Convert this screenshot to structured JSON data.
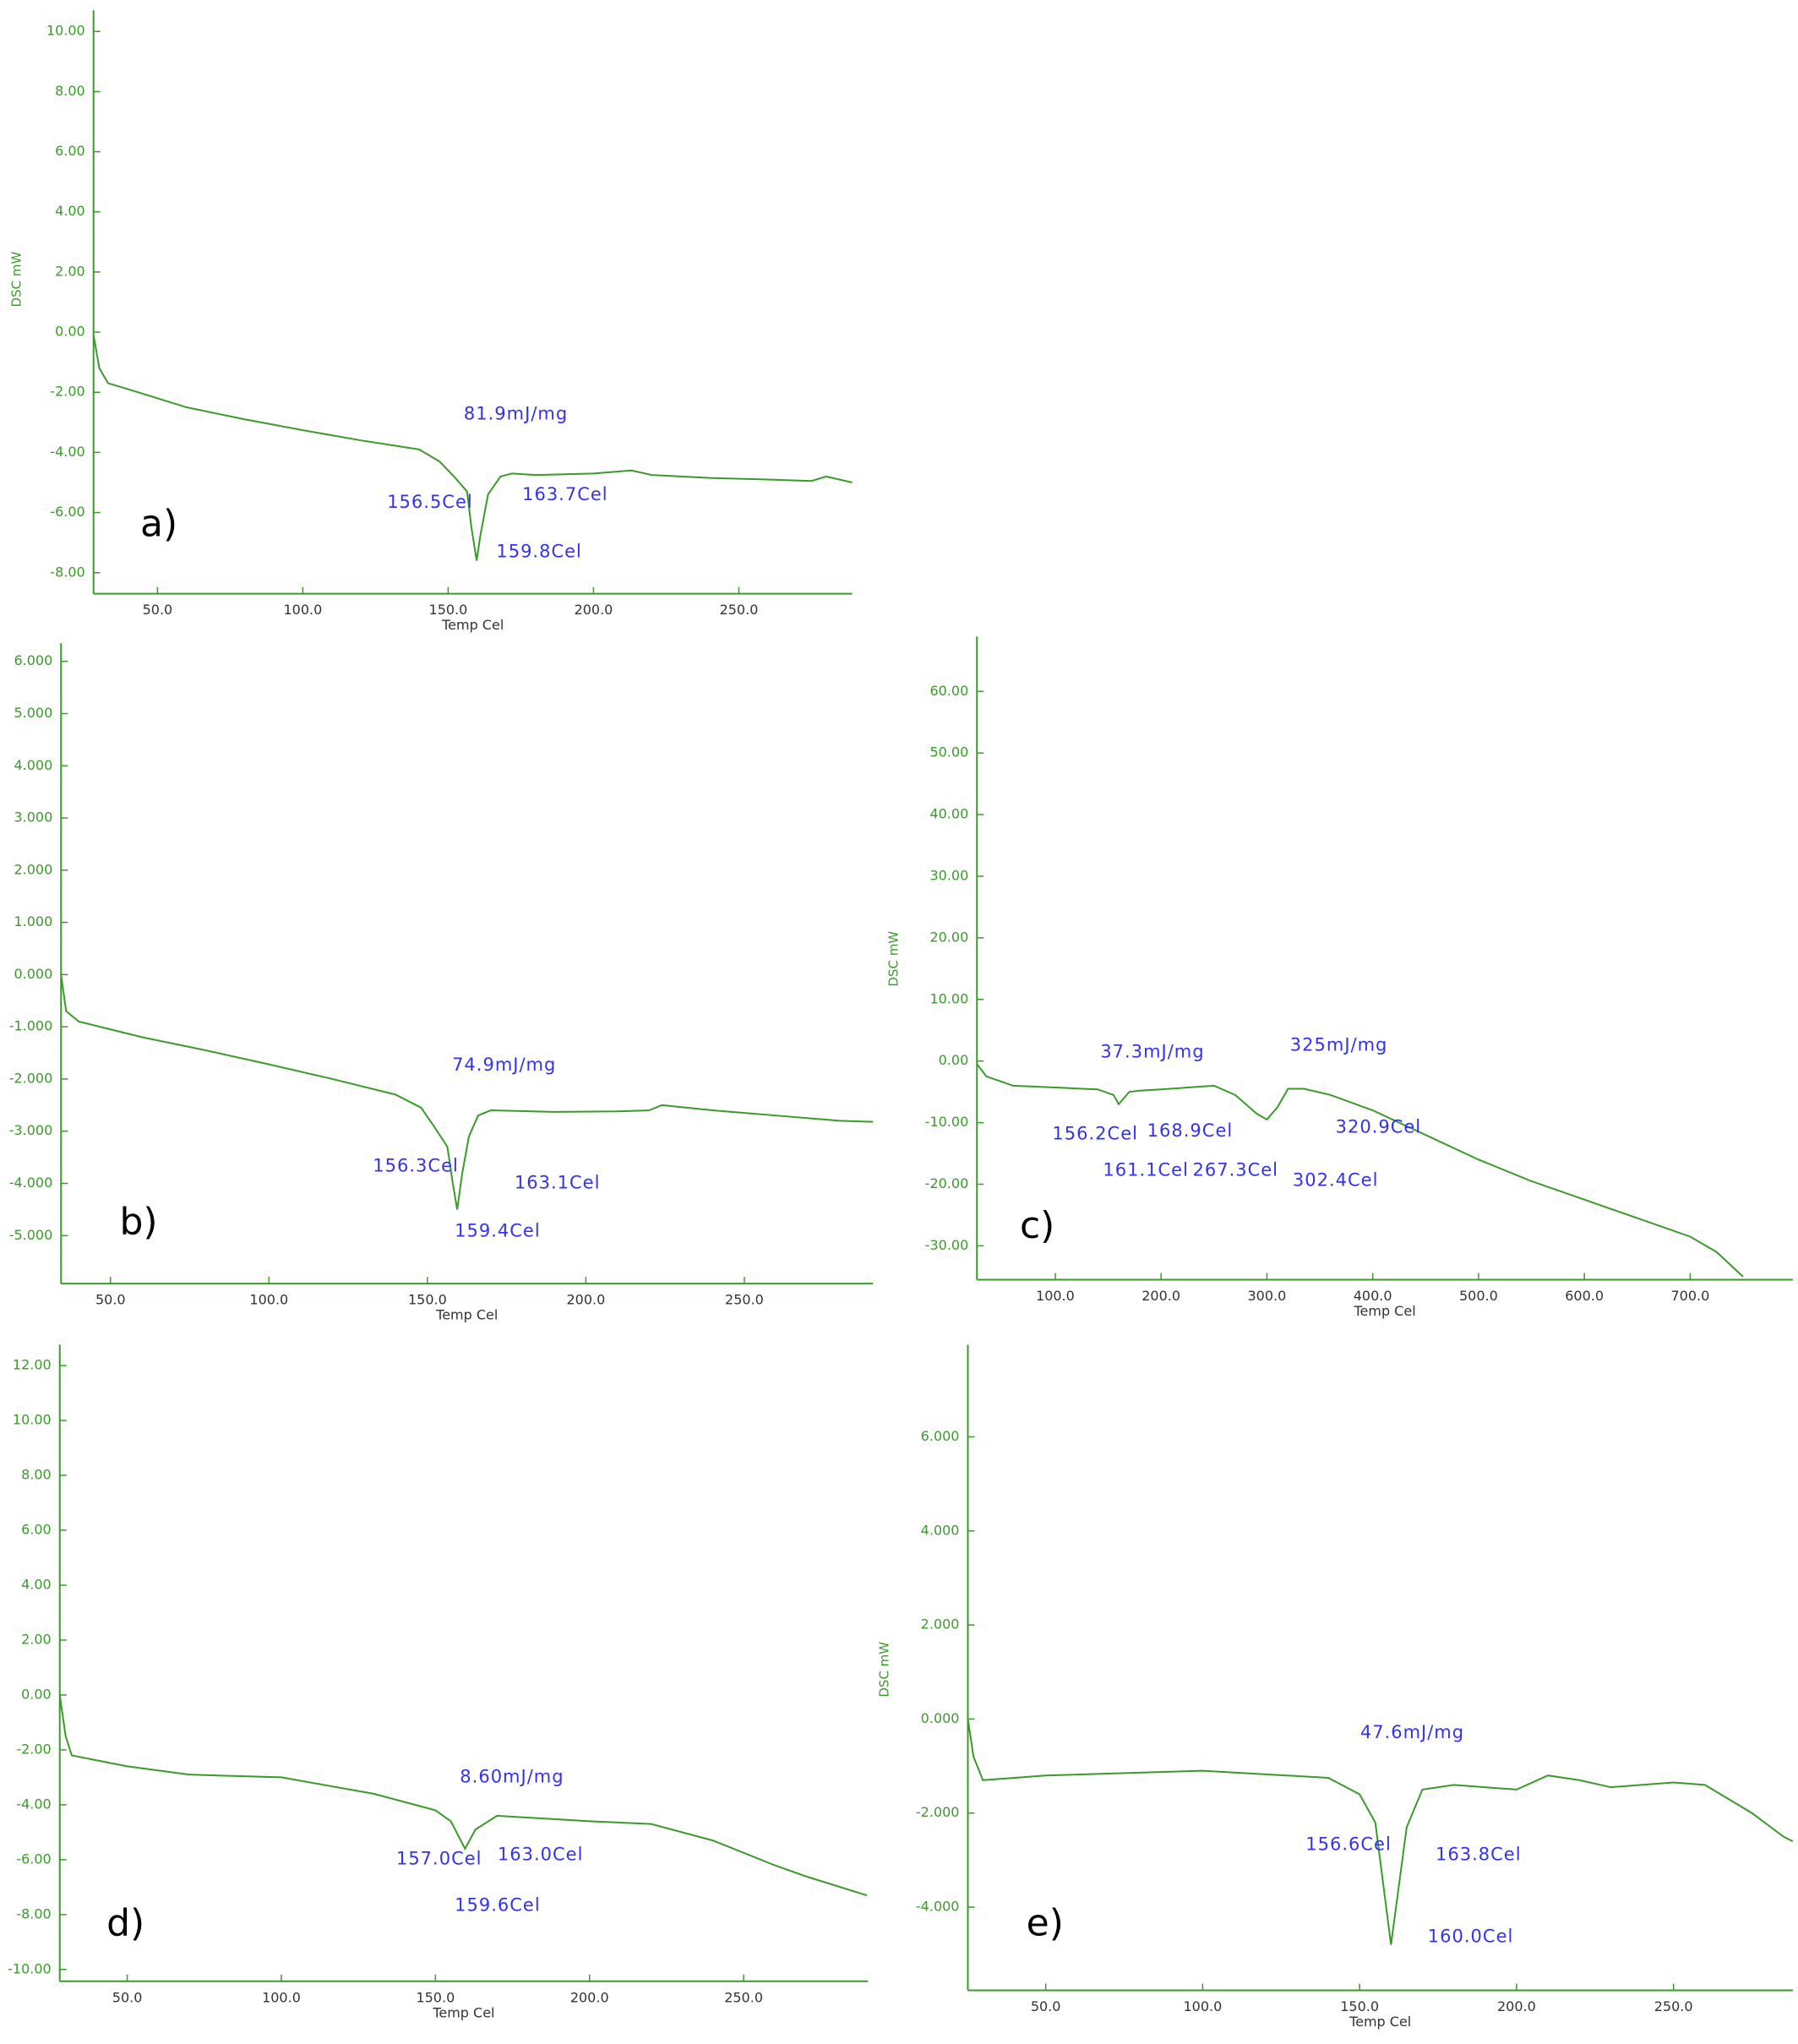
{
  "chart_data": [
    {
      "type": "line",
      "panel_label": "a)",
      "y_label": "DSC mW",
      "x_label": "Temp Cel",
      "color": "#3a9a2a",
      "xlim": [
        28,
        289
      ],
      "ylim": [
        -8.7,
        10.7
      ],
      "xticks": [
        {
          "value": 50,
          "label": "50.0"
        },
        {
          "value": 100,
          "label": "100.0"
        },
        {
          "value": 150,
          "label": "150.0"
        },
        {
          "value": 200,
          "label": "200.0"
        },
        {
          "value": 250,
          "label": "250.0"
        }
      ],
      "yticks": [
        {
          "value": 10,
          "label": "10.00"
        },
        {
          "value": 8,
          "label": "8.00"
        },
        {
          "value": 6,
          "label": "6.00"
        },
        {
          "value": 4,
          "label": "4.00"
        },
        {
          "value": 2,
          "label": "2.00"
        },
        {
          "value": 0,
          "label": "0.00"
        },
        {
          "value": -2,
          "label": "-2.00"
        },
        {
          "value": -4,
          "label": "-4.00"
        },
        {
          "value": -6,
          "label": "-6.00"
        },
        {
          "value": -8,
          "label": "-8.00"
        }
      ],
      "x": [
        28,
        30,
        33,
        40,
        60,
        80,
        100,
        120,
        140,
        147,
        152,
        156.5,
        158,
        159.8,
        161,
        163.7,
        168,
        172,
        180,
        200,
        213,
        220,
        240,
        260,
        275,
        280,
        289
      ],
      "values": [
        -0.1,
        -1.2,
        -1.7,
        -1.9,
        -2.5,
        -2.9,
        -3.26,
        -3.6,
        -3.9,
        -4.3,
        -4.8,
        -5.3,
        -6.5,
        -7.6,
        -6.8,
        -5.4,
        -4.8,
        -4.7,
        -4.75,
        -4.7,
        -4.6,
        -4.75,
        -4.85,
        -4.9,
        -4.95,
        -4.8,
        -5.0
      ],
      "annotations": [
        "81.9mJ/mg",
        "156.5Cel",
        "163.7Cel",
        "159.8Cel"
      ]
    },
    {
      "type": "line",
      "panel_label": "b)",
      "x_label": "Temp Cel",
      "color": "#3a9a2a",
      "xlim": [
        34.4,
        290.6
      ],
      "ylim": [
        -5.92,
        6.35
      ],
      "xticks": [
        {
          "value": 50,
          "label": "50.0"
        },
        {
          "value": 100,
          "label": "100.0"
        },
        {
          "value": 150,
          "label": "150.0"
        },
        {
          "value": 200,
          "label": "200.0"
        },
        {
          "value": 250,
          "label": "250.0"
        }
      ],
      "yticks": [
        {
          "value": 6,
          "label": "6.000"
        },
        {
          "value": 5,
          "label": "5.000"
        },
        {
          "value": 4,
          "label": "4.000"
        },
        {
          "value": 3,
          "label": "3.000"
        },
        {
          "value": 2,
          "label": "2.000"
        },
        {
          "value": 1,
          "label": "1.000"
        },
        {
          "value": 0,
          "label": "0.000"
        },
        {
          "value": -1,
          "label": "-1.000"
        },
        {
          "value": -2,
          "label": "-2.000"
        },
        {
          "value": -3,
          "label": "-3.000"
        },
        {
          "value": -4,
          "label": "-4.000"
        },
        {
          "value": -5,
          "label": "-5.000"
        }
      ],
      "x": [
        34.4,
        36,
        40,
        60,
        80,
        100,
        120,
        140,
        148,
        152,
        156.3,
        158,
        159.4,
        161,
        163.1,
        166,
        170,
        190,
        210,
        220,
        224,
        240,
        260,
        280,
        290.6
      ],
      "values": [
        0,
        -0.7,
        -0.9,
        -1.2,
        -1.45,
        -1.72,
        -2.0,
        -2.3,
        -2.55,
        -2.9,
        -3.3,
        -4.0,
        -4.5,
        -3.8,
        -3.1,
        -2.7,
        -2.6,
        -2.63,
        -2.62,
        -2.6,
        -2.5,
        -2.6,
        -2.7,
        -2.8,
        -2.82
      ],
      "annotations": [
        "74.9mJ/mg",
        "156.3Cel",
        "163.1Cel",
        "159.4Cel"
      ]
    },
    {
      "type": "line",
      "panel_label": "c)",
      "y_label": "DSC mW",
      "x_label": "Temp Cel",
      "color": "#3a9a2a",
      "xlim": [
        26,
        797
      ],
      "ylim": [
        -35.5,
        68.9
      ],
      "xticks": [
        {
          "value": 100,
          "label": "100.0"
        },
        {
          "value": 200,
          "label": "200.0"
        },
        {
          "value": 300,
          "label": "300.0"
        },
        {
          "value": 400,
          "label": "400.0"
        },
        {
          "value": 500,
          "label": "500.0"
        },
        {
          "value": 600,
          "label": "600.0"
        },
        {
          "value": 700,
          "label": "700.0"
        }
      ],
      "yticks": [
        {
          "value": 60,
          "label": "60.00"
        },
        {
          "value": 50,
          "label": "50.00"
        },
        {
          "value": 40,
          "label": "40.00"
        },
        {
          "value": 30,
          "label": "30.00"
        },
        {
          "value": 20,
          "label": "20.00"
        },
        {
          "value": 10,
          "label": "10.00"
        },
        {
          "value": 0,
          "label": "0.00"
        },
        {
          "value": -10,
          "label": "-10.00"
        },
        {
          "value": -20,
          "label": "-20.00"
        },
        {
          "value": -30,
          "label": "-30.00"
        }
      ],
      "x": [
        26,
        35,
        60,
        100,
        140,
        155,
        160,
        170,
        180,
        200,
        250,
        270,
        290,
        300,
        310,
        320,
        335,
        360,
        400,
        450,
        500,
        550,
        600,
        650,
        700,
        725,
        750
      ],
      "values": [
        -0.5,
        -2.5,
        -4,
        -4.3,
        -4.6,
        -5.5,
        -7,
        -5,
        -4.8,
        -4.6,
        -4.0,
        -5.5,
        -8.5,
        -9.5,
        -7.5,
        -4.5,
        -4.5,
        -5.5,
        -8,
        -12,
        -16,
        -19.5,
        -22.5,
        -25.5,
        -28.5,
        -31,
        -35
      ],
      "annotations": [
        "37.3mJ/mg",
        "325mJ/mg",
        "156.2Cel",
        "168.9Cel",
        "320.9Cel",
        "161.1Cel",
        "267.3Cel",
        "302.4Cel"
      ]
    },
    {
      "type": "line",
      "panel_label": "d)",
      "x_label": "Temp Cel",
      "color": "#3a9a2a",
      "xlim": [
        28.1,
        290.3
      ],
      "ylim": [
        -10.43,
        12.76
      ],
      "xticks": [
        {
          "value": 50,
          "label": "50.0"
        },
        {
          "value": 100,
          "label": "100.0"
        },
        {
          "value": 150,
          "label": "150.0"
        },
        {
          "value": 200,
          "label": "200.0"
        },
        {
          "value": 250,
          "label": "250.0"
        }
      ],
      "yticks": [
        {
          "value": 12,
          "label": "12.00"
        },
        {
          "value": 10,
          "label": "10.00"
        },
        {
          "value": 8,
          "label": "8.00"
        },
        {
          "value": 6,
          "label": "6.00"
        },
        {
          "value": 4,
          "label": "4.00"
        },
        {
          "value": 2,
          "label": "2.00"
        },
        {
          "value": 0,
          "label": "0.00"
        },
        {
          "value": -2,
          "label": "-2.00"
        },
        {
          "value": -4,
          "label": "-4.00"
        },
        {
          "value": -6,
          "label": "-6.00"
        },
        {
          "value": -8,
          "label": "-8.00"
        },
        {
          "value": -10,
          "label": "-10.00"
        }
      ],
      "x": [
        28.1,
        30,
        32,
        50,
        70,
        100,
        130,
        150,
        155,
        159.6,
        163,
        170,
        200,
        220,
        240,
        260,
        270,
        290
      ],
      "values": [
        0,
        -1.5,
        -2.2,
        -2.6,
        -2.9,
        -3.0,
        -3.6,
        -4.2,
        -4.6,
        -5.6,
        -4.9,
        -4.4,
        -4.6,
        -4.7,
        -5.3,
        -6.2,
        -6.6,
        -7.3
      ],
      "annotations": [
        "8.60mJ/mg",
        "157.0Cel",
        "163.0Cel",
        "159.6Cel"
      ]
    },
    {
      "type": "line",
      "panel_label": "e)",
      "y_label": "DSC mW",
      "x_label": "Temp Cel",
      "color": "#3a9a2a",
      "xlim": [
        25.2,
        288
      ],
      "ylim": [
        -5.77,
        7.96
      ],
      "xticks": [
        {
          "value": 50,
          "label": "50.0"
        },
        {
          "value": 100,
          "label": "100.0"
        },
        {
          "value": 150,
          "label": "150.0"
        },
        {
          "value": 200,
          "label": "200.0"
        },
        {
          "value": 250,
          "label": "250.0"
        }
      ],
      "yticks": [
        {
          "value": 6,
          "label": "6.000"
        },
        {
          "value": 4,
          "label": "4.000"
        },
        {
          "value": 2,
          "label": "2.000"
        },
        {
          "value": 0,
          "label": "0.000"
        },
        {
          "value": -2,
          "label": "-2.000"
        },
        {
          "value": -4,
          "label": "-4.000"
        }
      ],
      "x": [
        25.2,
        27,
        30,
        50,
        100,
        140,
        150,
        155,
        160,
        165,
        170,
        180,
        200,
        210,
        220,
        230,
        250,
        260,
        275,
        285,
        288
      ],
      "values": [
        0,
        -0.8,
        -1.3,
        -1.2,
        -1.1,
        -1.25,
        -1.6,
        -2.2,
        -4.8,
        -2.3,
        -1.5,
        -1.4,
        -1.5,
        -1.2,
        -1.3,
        -1.45,
        -1.35,
        -1.4,
        -2.0,
        -2.5,
        -2.6
      ],
      "annotations": [
        "47.6mJ/mg",
        "156.6Cel",
        "163.8Cel",
        "160.0Cel"
      ]
    }
  ]
}
